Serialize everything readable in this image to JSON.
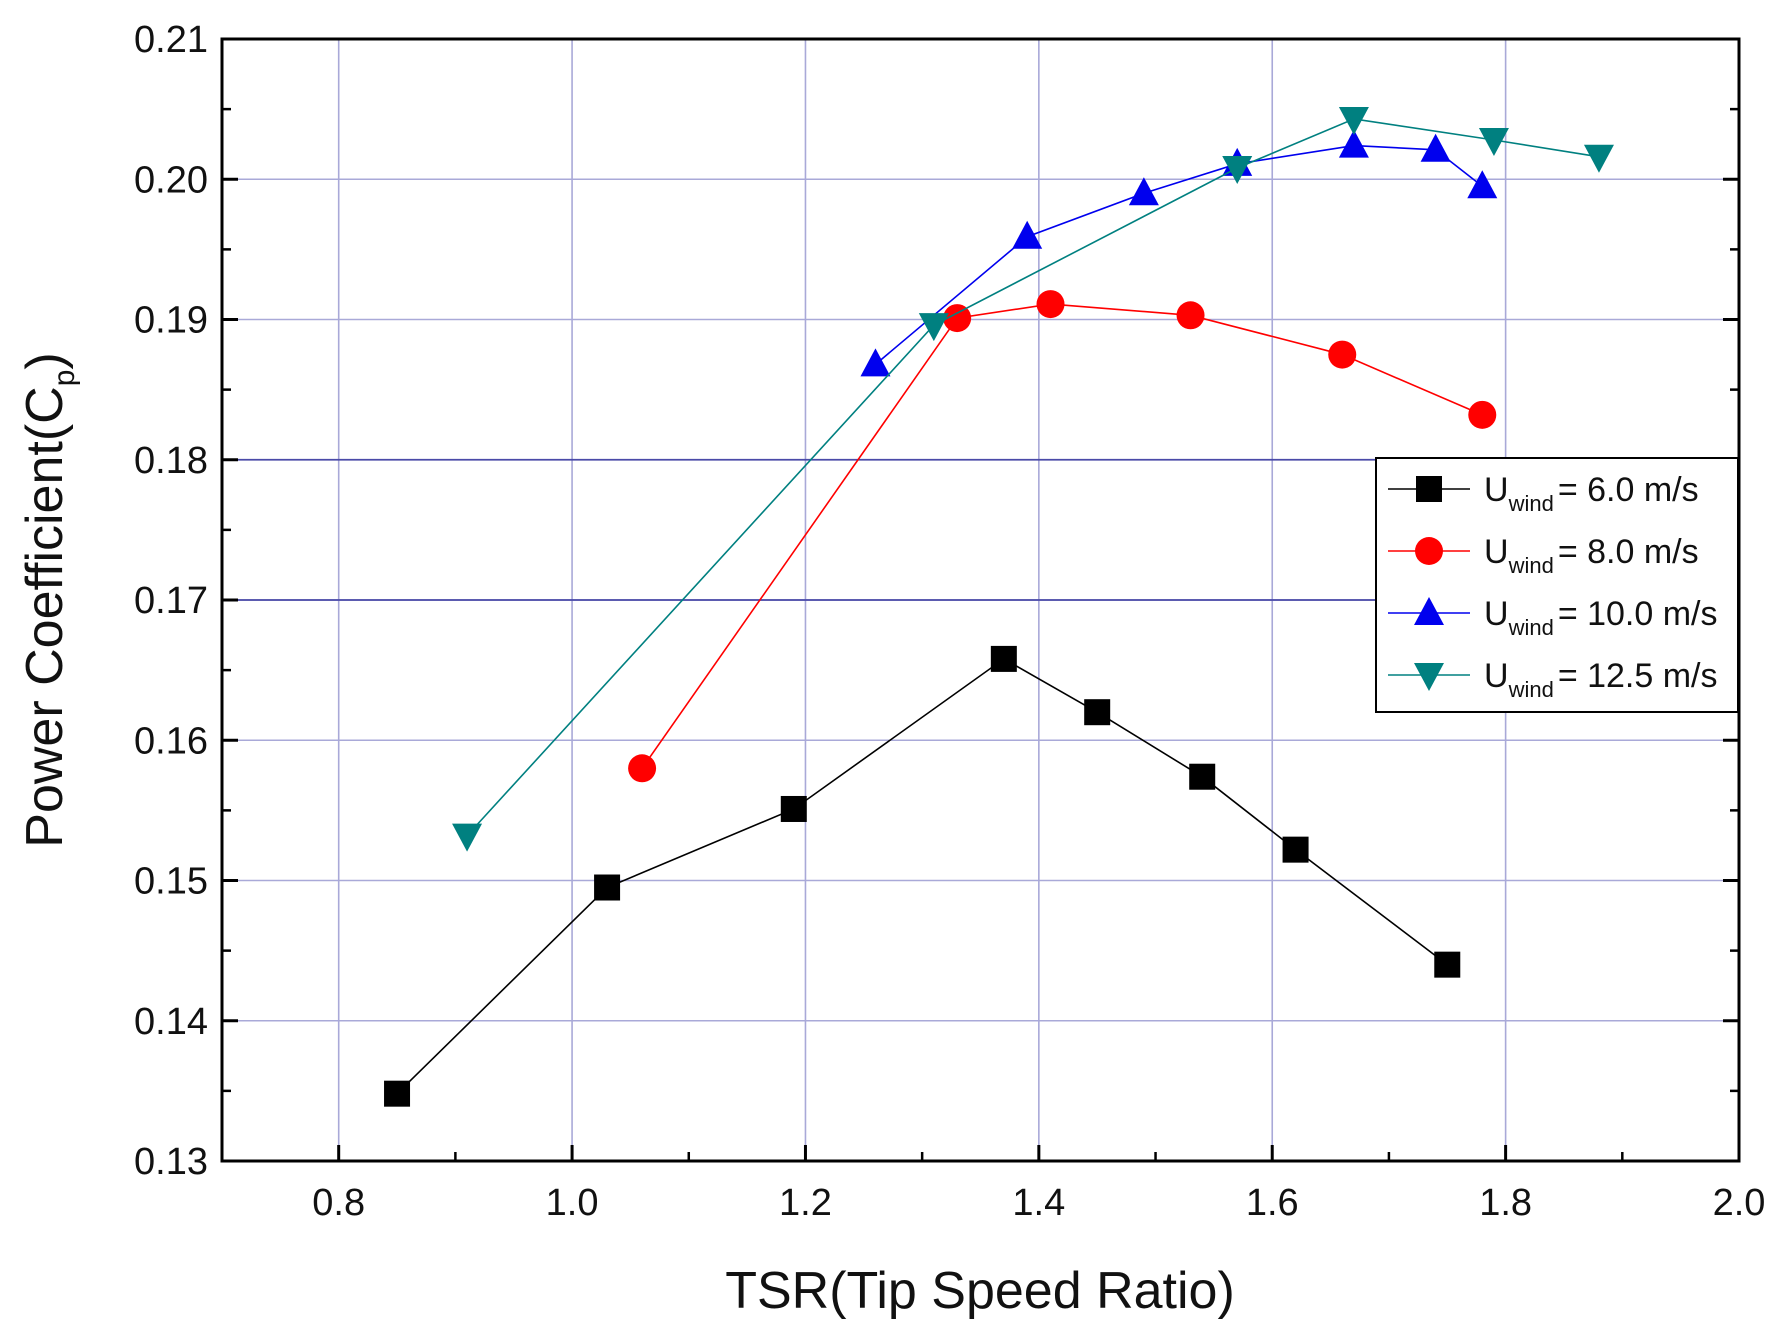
{
  "chart_data": {
    "type": "line",
    "xlabel": "TSR(Tip Speed Ratio)",
    "ylabel": "Power Coefficient(C",
    "ylabel_sub": "p",
    "ylabel_close": ")",
    "xlim": [
      0.7,
      2.0
    ],
    "ylim": [
      0.13,
      0.21
    ],
    "xticks": [
      "0.8",
      "1.0",
      "1.2",
      "1.4",
      "1.6",
      "1.8",
      "2.0"
    ],
    "yticks": [
      "0.13",
      "0.14",
      "0.15",
      "0.16",
      "0.17",
      "0.18",
      "0.19",
      "0.20",
      "0.21"
    ],
    "grid": true,
    "legend_position": "right",
    "series": [
      {
        "name": "Uwind = 6.0 m/s",
        "label_main": "U",
        "label_sub": "wind",
        "label_rest": "= 6.0 m/s",
        "marker": "square",
        "color": "#000000",
        "x": [
          0.85,
          1.03,
          1.19,
          1.37,
          1.45,
          1.54,
          1.62,
          1.75
        ],
        "y": [
          0.1348,
          0.1495,
          0.1551,
          0.1658,
          0.162,
          0.1574,
          0.1522,
          0.144
        ]
      },
      {
        "name": "Uwind = 8.0 m/s",
        "label_main": "U",
        "label_sub": "wind",
        "label_rest": "= 8.0 m/s",
        "marker": "circle",
        "color": "#ff0000",
        "x": [
          1.06,
          1.33,
          1.41,
          1.53,
          1.66,
          1.78
        ],
        "y": [
          0.158,
          0.1901,
          0.1911,
          0.1903,
          0.1875,
          0.1832
        ]
      },
      {
        "name": "Uwind = 10.0 m/s",
        "label_main": "U",
        "label_sub": "wind",
        "label_rest": "= 10.0 m/s",
        "marker": "triangle-up",
        "color": "#0000ee",
        "x": [
          1.26,
          1.39,
          1.49,
          1.57,
          1.67,
          1.74,
          1.78
        ],
        "y": [
          0.1868,
          0.1959,
          0.199,
          0.2011,
          0.2024,
          0.2021,
          0.1995
        ]
      },
      {
        "name": "Uwind = 12.5 m/s",
        "label_main": "U",
        "label_sub": "wind",
        "label_rest": "= 12.5 m/s",
        "marker": "triangle-down",
        "color": "#008080",
        "x": [
          0.91,
          1.31,
          1.57,
          1.67,
          1.79,
          1.88
        ],
        "y": [
          0.1532,
          0.1896,
          0.2008,
          0.2043,
          0.2028,
          0.2016
        ]
      }
    ]
  }
}
